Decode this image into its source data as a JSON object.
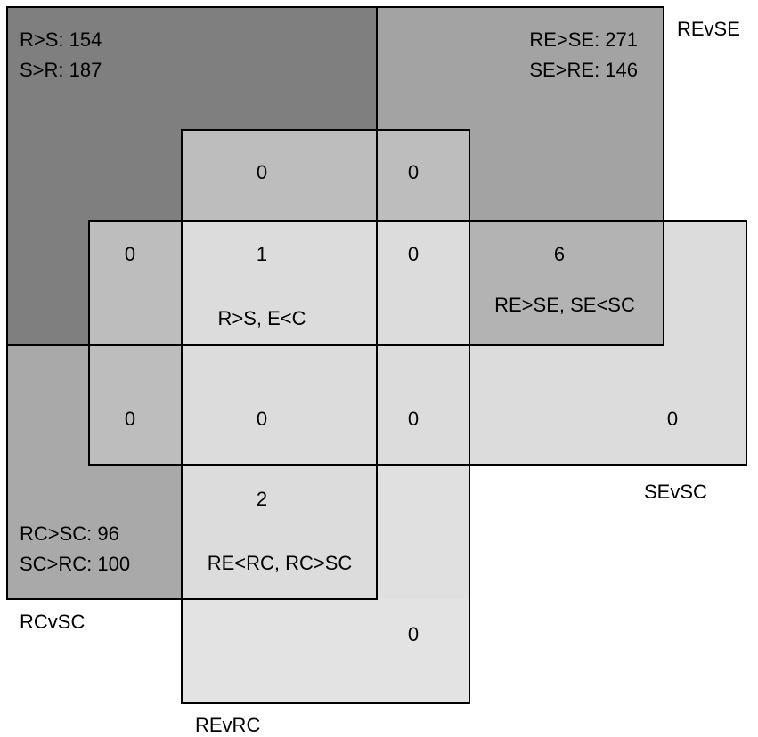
{
  "sets": {
    "revse": {
      "name": "REvSE",
      "line1": "RE>SE: 271",
      "line2": "SE>RE: 146"
    },
    "rvs": {
      "line1": "R>S: 154",
      "line2": "S>R: 187"
    },
    "rcvsc": {
      "name": "RCvSC",
      "line1": "RC>SC: 96",
      "line2": "SC>RC: 100"
    },
    "sevsc": {
      "name": "SEvSC"
    },
    "revrc": {
      "name": "REvRC"
    }
  },
  "regions": {
    "top_mid": "0",
    "top_right": "0",
    "r2_left": "0",
    "r2_center": "1",
    "r2_center_label": "R>S, E<C",
    "r2_mid": "0",
    "r2_right": "6",
    "r2_right_label": "RE>SE, SE<SC",
    "r3_left": "0",
    "r3_center": "0",
    "r3_mid": "0",
    "r3_far": "0",
    "r4_center": "2",
    "r4_center_label": "RE<RC, RC>SC",
    "bottom_mid": "0"
  },
  "colors": {
    "darkest": "#7f7f7f",
    "dark": "#a3a3a3",
    "medium": "#bdbdbd",
    "medium_dark": "#b3b3b3",
    "light": "#dcdcdc",
    "lightest": "#e3e3e3",
    "outline": "#000000"
  }
}
